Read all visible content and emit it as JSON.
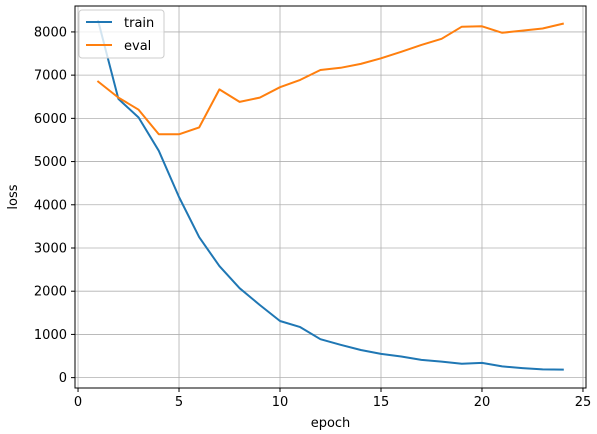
{
  "chart_data": {
    "type": "line",
    "title": "",
    "xlabel": "epoch",
    "ylabel": "loss",
    "xlim": [
      -0.15,
      25.15
    ],
    "ylim": [
      -240,
      8600
    ],
    "xticks": [
      0,
      5,
      10,
      15,
      20,
      25
    ],
    "yticks": [
      0,
      1000,
      2000,
      3000,
      4000,
      5000,
      6000,
      7000,
      8000
    ],
    "grid": true,
    "legend_position": "top-left",
    "series": [
      {
        "name": "train",
        "color": "#1f77b4",
        "x": [
          1,
          2,
          3,
          4,
          5,
          6,
          7,
          8,
          9,
          10,
          11,
          12,
          13,
          14,
          15,
          16,
          17,
          18,
          19,
          20,
          21,
          22,
          23,
          24
        ],
        "y": [
          8250,
          6450,
          6020,
          5250,
          4180,
          3250,
          2580,
          2070,
          1680,
          1310,
          1170,
          890,
          760,
          640,
          550,
          490,
          410,
          370,
          320,
          340,
          260,
          220,
          190,
          185
        ]
      },
      {
        "name": "eval",
        "color": "#ff7f0e",
        "x": [
          1,
          2,
          3,
          4,
          5,
          6,
          7,
          8,
          9,
          10,
          11,
          12,
          13,
          14,
          15,
          16,
          17,
          18,
          19,
          20,
          21,
          22,
          23,
          24
        ],
        "y": [
          6850,
          6480,
          6200,
          5630,
          5630,
          5790,
          6670,
          6380,
          6480,
          6720,
          6890,
          7120,
          7170,
          7260,
          7390,
          7540,
          7700,
          7840,
          8120,
          8130,
          7980,
          8030,
          8080,
          8190
        ]
      }
    ]
  }
}
